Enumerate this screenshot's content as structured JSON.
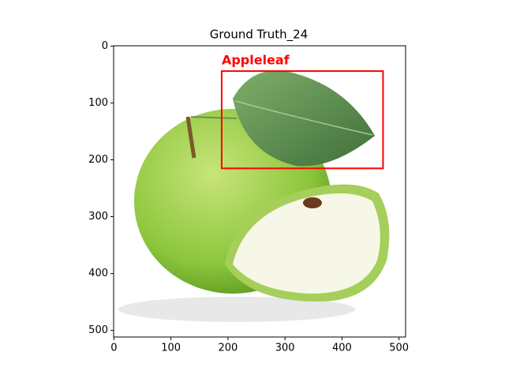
{
  "chart_data": {
    "type": "image",
    "title": "Ground Truth_24",
    "xlim": [
      -0.5,
      511.5
    ],
    "ylim": [
      511.5,
      -0.5
    ],
    "xticks": [
      0,
      100,
      200,
      300,
      400,
      500
    ],
    "yticks": [
      0,
      100,
      200,
      300,
      400,
      500
    ],
    "boxes": [
      {
        "label": "Appleleaf",
        "x": [
          189,
          472
        ],
        "y": [
          44,
          215
        ],
        "color": "#ff0000"
      }
    ]
  }
}
